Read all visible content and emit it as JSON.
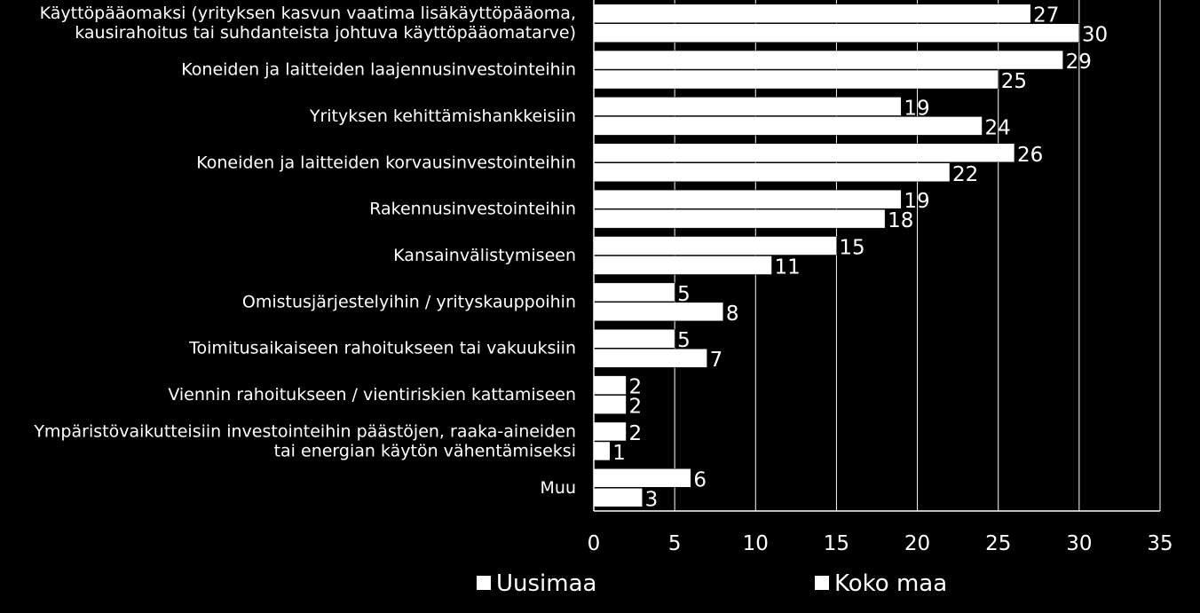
{
  "chart_data": {
    "type": "bar",
    "orientation": "horizontal",
    "categories": [
      [
        "Käyttöpääomaksi (yrityksen kasvun vaatima lisäkäyttöpääoma,",
        "kausirahoitus tai suhdanteista johtuva käyttöpääomatarve)"
      ],
      [
        "Koneiden ja laitteiden laajennusinvestointeihin"
      ],
      [
        "Yrityksen kehittämishankkeisiin"
      ],
      [
        "Koneiden ja laitteiden korvausinvestointeihin"
      ],
      [
        "Rakennusinvestointeihin"
      ],
      [
        "Kansainvälistymiseen"
      ],
      [
        "Omistusjärjestelyihin / yrityskauppoihin"
      ],
      [
        "Toimitusaikaiseen rahoitukseen tai vakuuksiin"
      ],
      [
        "Viennin rahoitukseen / vientiriskien kattamiseen"
      ],
      [
        "Ympäristövaikutteisiin investointeihin päästöjen, raaka-aineiden",
        "tai energian käytön vähentämiseksi"
      ],
      [
        "Muu"
      ]
    ],
    "series": [
      {
        "name": "Uusimaa",
        "values": [
          27,
          29,
          19,
          26,
          19,
          15,
          5,
          5,
          2,
          2,
          6
        ]
      },
      {
        "name": "Koko maa",
        "values": [
          30,
          25,
          24,
          22,
          18,
          11,
          8,
          7,
          2,
          1,
          3
        ]
      }
    ],
    "xlim": [
      0,
      35
    ],
    "xticks": [
      "0",
      "5",
      "10",
      "15",
      "20",
      "25",
      "30",
      "35"
    ],
    "grid": true,
    "legend_position": "bottom",
    "colors": {
      "background": "#000000",
      "bar": "#ffffff",
      "grid": "#ffffff",
      "text": "#ffffff"
    }
  }
}
